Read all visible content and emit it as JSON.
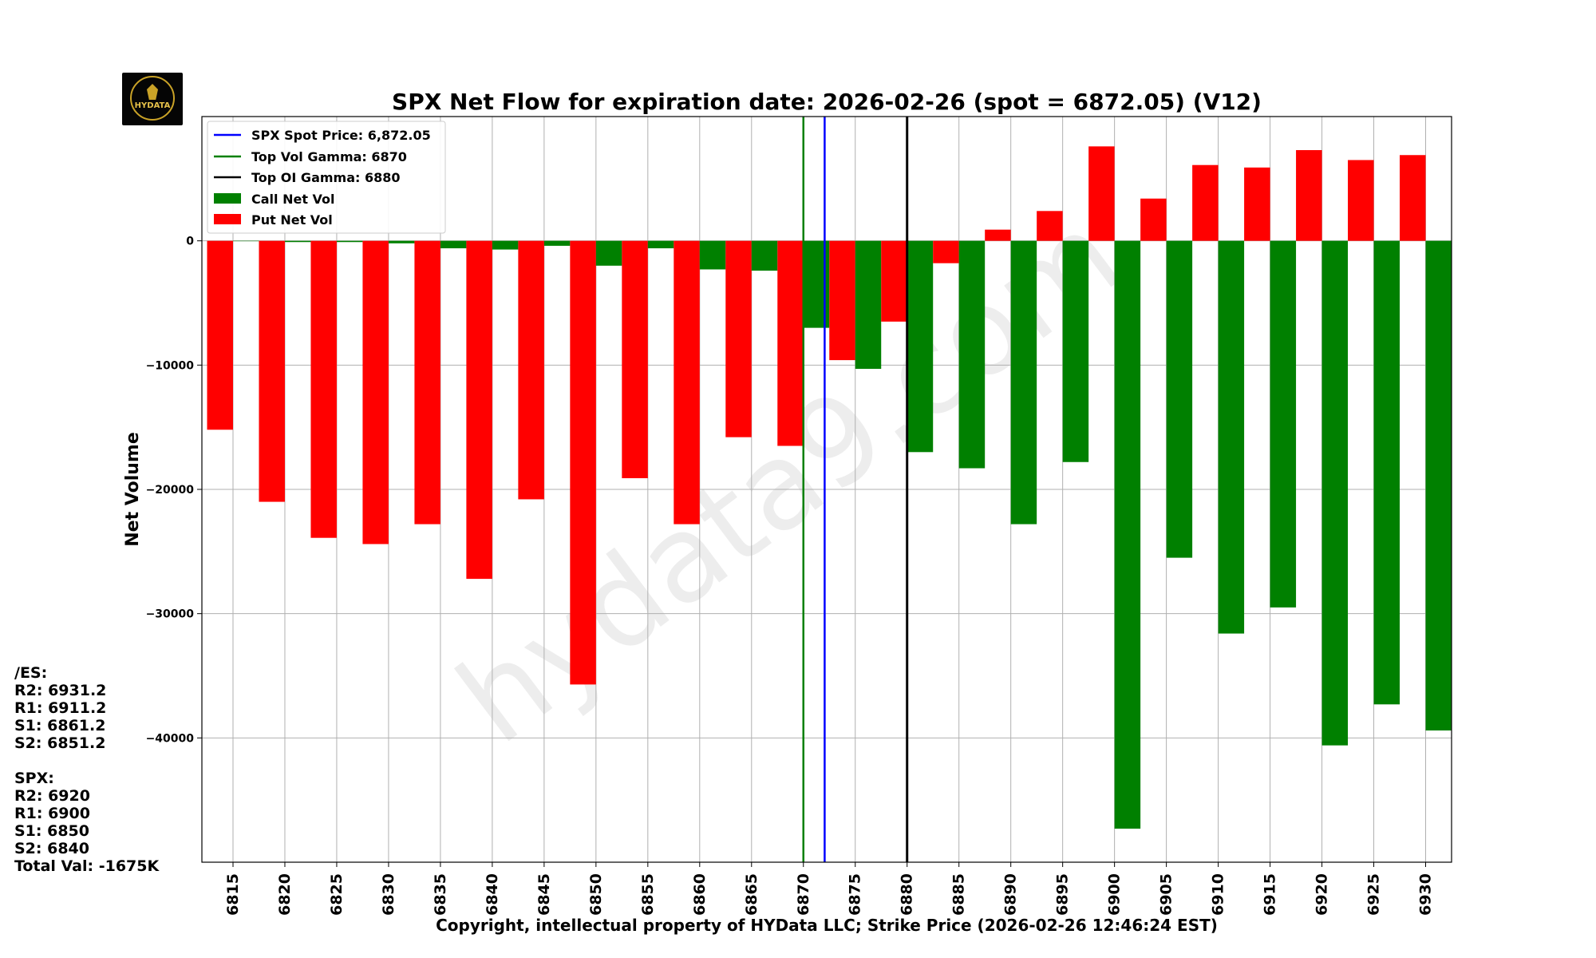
{
  "title": "SPX Net Flow for expiration date: 2026-02-26 (spot = 6872.05) (V12)",
  "footer": "Copyright, intellectual property of HYData LLC; Strike Price (2026-02-26 12:46:24 EST)",
  "watermark": "hydata9.com",
  "logo": {
    "brand": "HYDATA"
  },
  "side_panel": {
    "lines": [
      "/ES:",
      "R2: 6931.2",
      "R1: 6911.2",
      "S1: 6861.2",
      "S2: 6851.2",
      "",
      "SPX:",
      "R2: 6920",
      "R1: 6900",
      "S1: 6850",
      "S2: 6840",
      "Total Val: -1675K"
    ]
  },
  "colors": {
    "call": "#008000",
    "put": "#ff0000",
    "spot": "#0000ff",
    "vol_gamma": "#008000",
    "oi_gamma": "#000000"
  },
  "chart_data": {
    "type": "bar",
    "title": "SPX Net Flow for expiration date: 2026-02-26 (spot = 6872.05) (V12)",
    "ylabel": "Net Volume",
    "xlabel": "",
    "categories": [
      6815,
      6820,
      6825,
      6830,
      6835,
      6840,
      6845,
      6850,
      6855,
      6860,
      6865,
      6870,
      6875,
      6880,
      6885,
      6890,
      6895,
      6900,
      6905,
      6910,
      6915,
      6920,
      6925,
      6930
    ],
    "series": [
      {
        "name": "Put Net Vol",
        "values": [
          -15200,
          -21000,
          -23900,
          -24400,
          -22800,
          -27200,
          -20800,
          -35700,
          -19100,
          -22800,
          -15800,
          -16500,
          -9600,
          -6500,
          -1800,
          900,
          2400,
          7600,
          3400,
          6100,
          5900,
          7300,
          6500,
          6900
        ]
      },
      {
        "name": "Call Net Vol",
        "values": [
          0,
          -100,
          -100,
          -200,
          -600,
          -700,
          -400,
          -2000,
          -600,
          -2300,
          -2400,
          -7000,
          -10300,
          -17000,
          -18300,
          -22800,
          -17800,
          -47300,
          -25500,
          -31600,
          -29500,
          -40600,
          -37300,
          -39400
        ]
      }
    ],
    "ylim": [
      -50000,
      10000
    ],
    "xlim": [
      6812,
      6932.5
    ],
    "yticks": [
      0,
      -10000,
      -20000,
      -30000,
      -40000
    ],
    "ytick_labels": [
      "0",
      "−10000",
      "−20000",
      "−30000",
      "−40000"
    ],
    "vlines": [
      {
        "name": "SPX Spot Price: 6,872.05",
        "x": 6872.05,
        "color": "#0000ff"
      },
      {
        "name": "Top Vol Gamma: 6870",
        "x": 6870,
        "color": "#008000"
      },
      {
        "name": "Top OI Gamma: 6880",
        "x": 6880,
        "color": "#000000"
      }
    ],
    "legend_position": "top-left",
    "grid": true
  }
}
